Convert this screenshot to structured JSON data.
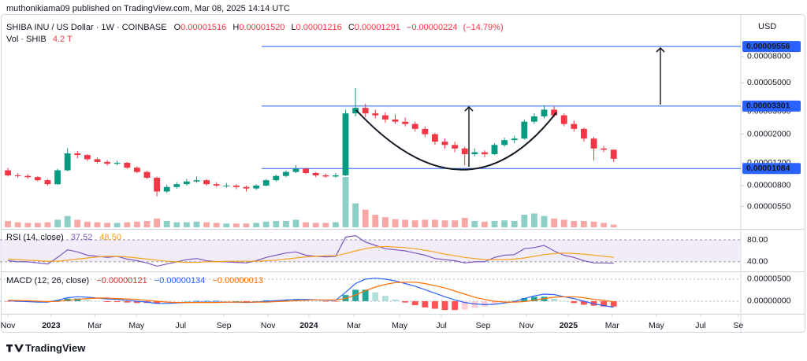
{
  "header": {
    "publisher": "muthonikiama09 published on TradingView.com, Mar 08, 2025 14:14 UTC",
    "logo": "TradingView"
  },
  "chart_data": {
    "type": "candlestick",
    "title": "SHIBA INU / US Dollar · 1W · COINBASE",
    "currency": "USD",
    "ohlc_keys": [
      "O",
      "H",
      "L",
      "C"
    ],
    "last_labels": [
      "0.00001516",
      "0.00001520",
      "0.00001216",
      "0.00001291"
    ],
    "change": {
      "value": -2.24e-06,
      "label": "−0.00000224"
    },
    "change_pct": {
      "value": -14.79,
      "label": "(−14.79%)"
    },
    "colors": {
      "up": "#089981",
      "down": "#f23645",
      "up_volume": "#8ccfc6",
      "down_volume": "#f7a8a6",
      "drawing": "#2962ff"
    },
    "log_scale": true,
    "grid": false,
    "xlim": [
      -1.6,
      147.6
    ],
    "xticks": [
      {
        "value": 0,
        "label": "Nov"
      },
      {
        "value": 8.7,
        "label": "2023"
      },
      {
        "value": 17.5,
        "label": "Mar"
      },
      {
        "value": 25.9,
        "label": "May"
      },
      {
        "value": 34.8,
        "label": "Jul"
      },
      {
        "value": 43.5,
        "label": "Sep"
      },
      {
        "value": 52.4,
        "label": "Nov"
      },
      {
        "value": 60.6,
        "label": "2024"
      },
      {
        "value": 69.7,
        "label": "Mar"
      },
      {
        "value": 78.9,
        "label": "May"
      },
      {
        "value": 87.3,
        "label": "Jul"
      },
      {
        "value": 95.7,
        "label": "Sep"
      },
      {
        "value": 104.4,
        "label": "Nov"
      },
      {
        "value": 112.9,
        "label": "2025"
      },
      {
        "value": 121.7,
        "label": "Mar"
      },
      {
        "value": 130.6,
        "label": "May"
      },
      {
        "value": 139.5,
        "label": "Jul"
      },
      {
        "value": 147.1,
        "label": "Se"
      }
    ],
    "ylim": [
      3.8e-06,
      0.000148
    ],
    "yticks": [
      {
        "value": 8e-05,
        "label": "0.00008000"
      },
      {
        "value": 5e-05,
        "label": "0.00005000"
      },
      {
        "value": 3e-05,
        "label": "0.00003000"
      },
      {
        "value": 2e-05,
        "label": "0.00002000"
      },
      {
        "value": 1.2e-05,
        "label": "0.00001200"
      },
      {
        "value": 8e-06,
        "label": "0.00000800"
      },
      {
        "value": 5.5e-06,
        "label": "0.00000550"
      }
    ],
    "hlines": [
      {
        "value": 9.556e-05,
        "label": "0.00009556"
      },
      {
        "value": 3.301e-05,
        "label": "0.00003301"
      },
      {
        "value": 1.084e-05,
        "label": "0.00001084"
      }
    ],
    "x": [
      0,
      2,
      4,
      6,
      8,
      10,
      12,
      14,
      16,
      18,
      20,
      22,
      24,
      26,
      28,
      30,
      32,
      34,
      36,
      38,
      40,
      42,
      44,
      46,
      48,
      50,
      52,
      54,
      56,
      58,
      60,
      62,
      64,
      66,
      68,
      70,
      72,
      74,
      76,
      78,
      80,
      82,
      84,
      86,
      88,
      90,
      92,
      94,
      96,
      98,
      100,
      102,
      104,
      106,
      108,
      110,
      112,
      114,
      116,
      118,
      120,
      122
    ],
    "ohlc": [
      [
        1.05e-05,
        1.1e-05,
        9.4e-06,
        9.6e-06
      ],
      [
        9.6e-06,
        1e-05,
        9.2e-06,
        9.5e-06
      ],
      [
        9.5e-06,
        9.8e-06,
        9e-06,
        9.3e-06
      ],
      [
        9.3e-06,
        9.5e-06,
        8.6e-06,
        8.8e-06
      ],
      [
        8.8e-06,
        9e-06,
        8e-06,
        8.2e-06
      ],
      [
        8.2e-06,
        1.08e-05,
        8.1e-06,
        1.05e-05
      ],
      [
        1.05e-05,
        1.56e-05,
        1.03e-05,
        1.42e-05
      ],
      [
        1.42e-05,
        1.48e-05,
        1.3e-05,
        1.38e-05
      ],
      [
        1.38e-05,
        1.4e-05,
        1.24e-05,
        1.28e-05
      ],
      [
        1.28e-05,
        1.32e-05,
        1.18e-05,
        1.22e-05
      ],
      [
        1.22e-05,
        1.26e-05,
        1.14e-05,
        1.18e-05
      ],
      [
        1.18e-05,
        1.25e-05,
        1.15e-05,
        1.2e-05
      ],
      [
        1.2e-05,
        1.22e-05,
        1.08e-05,
        1.1e-05
      ],
      [
        1.1e-05,
        1.13e-05,
        1e-05,
        1.02e-05
      ],
      [
        1.02e-05,
        1.04e-05,
        9e-06,
        9.2e-06
      ],
      [
        9.2e-06,
        9.4e-06,
        6.6e-06,
        7.2e-06
      ],
      [
        7.2e-06,
        8.1e-06,
        7e-06,
        7.8e-06
      ],
      [
        7.8e-06,
        8.5e-06,
        7.6e-06,
        8.2e-06
      ],
      [
        8.2e-06,
        9e-06,
        8e-06,
        8.6e-06
      ],
      [
        8.6e-06,
        9.4e-06,
        8.4e-06,
        8.8e-06
      ],
      [
        8.8e-06,
        9e-06,
        8e-06,
        8.2e-06
      ],
      [
        8.2e-06,
        8.5e-06,
        7.8e-06,
        8e-06
      ],
      [
        8e-06,
        8.4e-06,
        7.7e-06,
        8e-06
      ],
      [
        8e-06,
        8.2e-06,
        7.5e-06,
        7.8e-06
      ],
      [
        7.8e-06,
        8e-06,
        7.2e-06,
        7.6e-06
      ],
      [
        7.6e-06,
        8.2e-06,
        7.4e-06,
        8e-06
      ],
      [
        8e-06,
        9e-06,
        7.9e-06,
        8.8e-06
      ],
      [
        8.8e-06,
        9.7e-06,
        8.6e-06,
        9.5e-06
      ],
      [
        9.5e-06,
        1.05e-05,
        9.3e-06,
        1.02e-05
      ],
      [
        1.02e-05,
        1.15e-05,
        1e-05,
        1.08e-05
      ],
      [
        1.08e-05,
        1.1e-05,
        9.8e-06,
        1e-05
      ],
      [
        1e-05,
        1.02e-05,
        9.3e-06,
        9.6e-06
      ],
      [
        9.6e-06,
        9.9e-06,
        9.2e-06,
        9.4e-06
      ],
      [
        9.4e-06,
        1e-05,
        9.2e-06,
        9.6e-06
      ],
      [
        9.6e-06,
        3.1e-05,
        9.5e-06,
        2.9e-05
      ],
      [
        2.9e-05,
        4.55e-05,
        2.75e-05,
        3.2e-05
      ],
      [
        3.2e-05,
        3.45e-05,
        2.7e-05,
        2.9e-05
      ],
      [
        2.9e-05,
        3.1e-05,
        2.65e-05,
        2.8e-05
      ],
      [
        2.8e-05,
        2.95e-05,
        2.45e-05,
        2.6e-05
      ],
      [
        2.6e-05,
        2.85e-05,
        2.4e-05,
        2.5e-05
      ],
      [
        2.5e-05,
        2.7e-05,
        2.3e-05,
        2.4e-05
      ],
      [
        2.4e-05,
        2.5e-05,
        2.1e-05,
        2.2e-05
      ],
      [
        2.2e-05,
        2.3e-05,
        1.9e-05,
        2e-05
      ],
      [
        2e-05,
        2.05e-05,
        1.65e-05,
        1.75e-05
      ],
      [
        1.75e-05,
        1.85e-05,
        1.55e-05,
        1.65e-05
      ],
      [
        1.65e-05,
        1.75e-05,
        1.45e-05,
        1.55e-05
      ],
      [
        1.55e-05,
        1.6e-05,
        1.15e-05,
        1.4e-05
      ],
      [
        1.4e-05,
        1.55e-05,
        1.35e-05,
        1.45e-05
      ],
      [
        1.45e-05,
        1.5e-05,
        1.32e-05,
        1.4e-05
      ],
      [
        1.4e-05,
        1.7e-05,
        1.38e-05,
        1.65e-05
      ],
      [
        1.65e-05,
        1.88e-05,
        1.6e-05,
        1.8e-05
      ],
      [
        1.8e-05,
        1.95e-05,
        1.7e-05,
        1.85e-05
      ],
      [
        1.85e-05,
        2.6e-05,
        1.82e-05,
        2.5e-05
      ],
      [
        2.5e-05,
        2.9e-05,
        2.4e-05,
        2.75e-05
      ],
      [
        2.75e-05,
        3.35e-05,
        2.65e-05,
        3.1e-05
      ],
      [
        3.1e-05,
        3.3e-05,
        2.7e-05,
        2.8e-05
      ],
      [
        2.8e-05,
        2.9e-05,
        2.3e-05,
        2.4e-05
      ],
      [
        2.4e-05,
        2.55e-05,
        2.1e-05,
        2.2e-05
      ],
      [
        2.2e-05,
        2.25e-05,
        1.75e-05,
        1.85e-05
      ],
      [
        1.85e-05,
        1.9e-05,
        1.25e-05,
        1.55e-05
      ],
      [
        1.55e-05,
        1.62e-05,
        1.45e-05,
        1.516e-05
      ],
      [
        1.516e-05,
        1.52e-05,
        1.216e-05,
        1.291e-05
      ]
    ],
    "volume": {
      "title": "Vol · SHIB",
      "last_label": "4.2 T",
      "ylim": [
        0,
        200000000000000.0
      ],
      "values": [
        10000000000000.0,
        8000000000000.0,
        7000000000000.0,
        7000000000000.0,
        8000000000000.0,
        12000000000000.0,
        18000000000000.0,
        12000000000000.0,
        9000000000000.0,
        8000000000000.0,
        7000000000000.0,
        7000000000000.0,
        8000000000000.0,
        9000000000000.0,
        10000000000000.0,
        14000000000000.0,
        10000000000000.0,
        8000000000000.0,
        8000000000000.0,
        9000000000000.0,
        8000000000000.0,
        7000000000000.0,
        6000000000000.0,
        6000000000000.0,
        6000000000000.0,
        7000000000000.0,
        9000000000000.0,
        10000000000000.0,
        10000000000000.0,
        12000000000000.0,
        8000000000000.0,
        7000000000000.0,
        7000000000000.0,
        8000000000000.0,
        80000000000000.0,
        38000000000000.0,
        28000000000000.0,
        20000000000000.0,
        16000000000000.0,
        13000000000000.0,
        12000000000000.0,
        11000000000000.0,
        12000000000000.0,
        12000000000000.0,
        11000000000000.0,
        11000000000000.0,
        15000000000000.0,
        10000000000000.0,
        9000000000000.0,
        10000000000000.0,
        11000000000000.0,
        10000000000000.0,
        20000000000000.0,
        22000000000000.0,
        18000000000000.0,
        14000000000000.0,
        12000000000000.0,
        10000000000000.0,
        10000000000000.0,
        9000000000000.0,
        7000000000000.0,
        4200000000000.0
      ]
    },
    "rsi": {
      "title": "RSI (14, close)",
      "ylim": [
        24,
        93
      ],
      "yticks": [
        {
          "value": 80,
          "label": "80.00"
        },
        {
          "value": 40,
          "label": "40.00"
        }
      ],
      "band_color": "#ede7f6",
      "series": [
        {
          "color": "#7e57c2",
          "last_label": "37.52",
          "values": [
            42,
            40,
            40,
            38,
            36,
            48,
            62,
            58,
            52,
            50,
            48,
            50,
            45,
            42,
            38,
            32,
            36,
            40,
            44,
            46,
            42,
            40,
            40,
            39,
            38,
            42,
            48,
            52,
            56,
            58,
            52,
            50,
            49,
            50,
            85,
            88,
            76,
            70,
            64,
            62,
            60,
            56,
            52,
            46,
            44,
            42,
            38,
            40,
            40,
            48,
            52,
            53,
            64,
            66,
            70,
            60,
            52,
            48,
            42,
            38,
            38,
            37.52
          ]
        },
        {
          "color": "#f7a21b",
          "last_label": "48.50",
          "values": [
            45,
            44,
            43,
            42,
            41,
            41,
            43,
            45,
            47,
            49,
            50,
            50,
            49,
            47,
            45,
            43,
            41,
            40,
            39,
            39,
            40,
            40,
            41,
            41,
            41,
            41,
            42,
            43,
            45,
            47,
            49,
            50,
            51,
            51,
            55,
            60,
            64,
            67,
            68,
            67,
            66,
            64,
            61,
            58,
            54,
            51,
            48,
            46,
            44,
            44,
            44,
            45,
            47,
            50,
            53,
            55,
            56,
            55,
            54,
            52,
            50,
            48.5
          ]
        }
      ]
    },
    "macd": {
      "title": "MACD (12, 26, close)",
      "ylim": [
        -2.5e-06,
        6.4e-06
      ],
      "yticks": [
        {
          "value": 5e-06,
          "label": "0.00000500"
        },
        {
          "value": 0,
          "label": "0.00000000"
        }
      ],
      "histogram": {
        "last_label": "−0.00000121",
        "colors": {
          "up_strong": "#26a69a",
          "up_weak": "#b2dfdb",
          "down_strong": "#ff5252",
          "down_weak": "#ffcdd2"
        },
        "values": [
          -1e-07,
          -1.5e-07,
          -2e-07,
          -2e-07,
          -1e-07,
          2.5e-07,
          6e-07,
          6e-07,
          3e-07,
          0,
          -2e-07,
          -2e-07,
          -3e-07,
          -4e-07,
          -4e-07,
          -5e-07,
          -3e-07,
          -1e-07,
          0,
          1e-07,
          1e-07,
          1e-07,
          0,
          0,
          -1e-07,
          0,
          2e-07,
          2e-07,
          3e-07,
          3e-07,
          2e-07,
          0,
          -1e-07,
          -1e-07,
          1.4e-06,
          2.6e-06,
          2.6e-06,
          2e-06,
          1.2e-06,
          4e-07,
          -3e-07,
          -9e-07,
          -1.4e-06,
          -1.7e-06,
          -2e-06,
          -2e-06,
          -1.9e-06,
          -1.5e-06,
          -1.2e-06,
          -7e-07,
          -2e-07,
          1e-07,
          7e-07,
          1e-06,
          1e-06,
          6e-07,
          0,
          -4e-07,
          -8e-07,
          -1e-06,
          -1.2e-06,
          -1.21e-06
        ]
      },
      "series": [
        {
          "color": "#2962ff",
          "last_label": "−0.00000134",
          "values": [
            1e-07,
            0,
            -1e-07,
            -2e-07,
            -2e-07,
            2e-07,
            8e-07,
            1e-06,
            9e-07,
            7e-07,
            5e-07,
            4e-07,
            2e-07,
            0,
            -2e-07,
            -5e-07,
            -5e-07,
            -4e-07,
            -3e-07,
            -2e-07,
            -2e-07,
            -2e-07,
            -2e-07,
            -2e-07,
            -3e-07,
            -2e-07,
            0,
            1e-07,
            3e-07,
            4e-07,
            4e-07,
            3e-07,
            2e-07,
            2e-07,
            2e-06,
            4e-06,
            5e-06,
            5.2e-06,
            5e-06,
            4.6e-06,
            4e-06,
            3.4e-06,
            2.6e-06,
            1.8e-06,
            1e-06,
            3e-07,
            -3e-07,
            -6e-07,
            -8e-07,
            -7e-07,
            -4e-07,
            -1e-07,
            6e-07,
            1.2e-06,
            1.6e-06,
            1.5e-06,
            1e-06,
            6e-07,
            0,
            -6e-07,
            -1e-06,
            -1.34e-06
          ]
        },
        {
          "color": "#ff6d00",
          "last_label": "−0.00000013",
          "values": [
            2e-07,
            1.5e-07,
            1e-07,
            0,
            -1e-07,
            -5e-08,
            2e-07,
            4e-07,
            6e-07,
            7e-07,
            7e-07,
            6e-07,
            5e-07,
            4e-07,
            2e-07,
            0,
            -2e-07,
            -3e-07,
            -3e-07,
            -3e-07,
            -3e-07,
            -3e-07,
            -2e-07,
            -2e-07,
            -2e-07,
            -2e-07,
            -2e-07,
            -1e-07,
            0,
            1e-07,
            2e-07,
            3e-07,
            3e-07,
            3e-07,
            6e-07,
            1.4e-06,
            2.4e-06,
            3.2e-06,
            3.8e-06,
            4.2e-06,
            4.3e-06,
            4.3e-06,
            4e-06,
            3.5e-06,
            3e-06,
            2.3e-06,
            1.6e-06,
            9e-07,
            4e-07,
            0,
            -2e-07,
            -2e-07,
            -1e-07,
            2e-07,
            6e-07,
            9e-07,
            1e-06,
            1e-06,
            8e-07,
            4e-07,
            2e-07,
            -1.3e-07
          ]
        }
      ]
    }
  }
}
